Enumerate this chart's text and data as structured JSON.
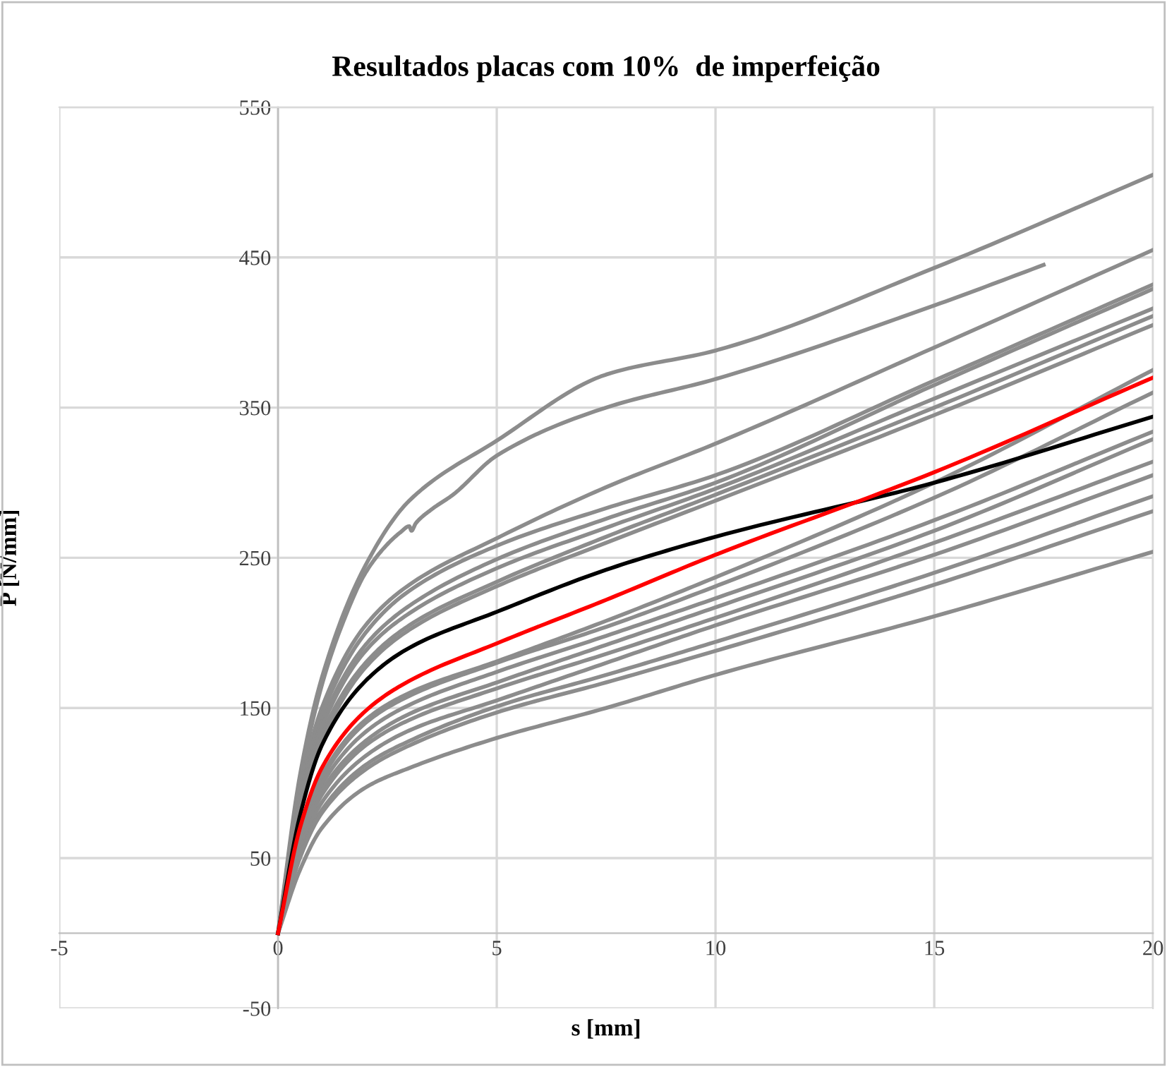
{
  "chart_data": {
    "type": "line",
    "title": "Resultados placas com 10%  de imperfeição",
    "xlabel": "s [mm]",
    "ylabel": "P [N/mm]",
    "x": [
      0,
      0.5,
      1,
      2,
      3,
      5,
      7.5,
      10,
      15,
      20
    ],
    "xlim": [
      -5,
      20
    ],
    "xticks": [
      -5,
      0,
      5,
      10,
      15,
      20
    ],
    "ylim": [
      -50,
      550
    ],
    "yticks": [
      -50,
      50,
      150,
      250,
      350,
      450,
      550
    ],
    "grid": true,
    "marker": "none",
    "line_style": "solid",
    "series": [
      {
        "color": "#8c8c8c",
        "values": [
          0,
          105,
          170,
          245,
          288,
          328,
          372,
          388,
          443,
          505
        ]
      },
      {
        "color": "#8c8c8c",
        "x": [
          0,
          0.5,
          1,
          1.5,
          2,
          2.5,
          2.8,
          3,
          3.05,
          3.15,
          3.5,
          4,
          5,
          7.5,
          10,
          15,
          17.5
        ],
        "values": [
          0,
          100,
          165,
          208,
          240,
          259,
          267,
          271,
          268,
          273,
          282,
          292,
          318,
          350,
          369,
          418,
          445
        ]
      },
      {
        "color": "#8c8c8c",
        "values": [
          0,
          95,
          150,
          205,
          232,
          263,
          297,
          326,
          390,
          455
        ]
      },
      {
        "color": "#8c8c8c",
        "values": [
          0,
          90,
          145,
          200,
          228,
          258,
          283,
          305,
          368,
          432
        ]
      },
      {
        "color": "#8c8c8c",
        "values": [
          0,
          88,
          140,
          192,
          218,
          249,
          276,
          300,
          365,
          429
        ]
      },
      {
        "color": "#8c8c8c",
        "values": [
          0,
          85,
          137,
          188,
          213,
          243,
          270,
          296,
          356,
          416
        ]
      },
      {
        "color": "#8c8c8c",
        "values": [
          0,
          82,
          132,
          180,
          205,
          234,
          264,
          292,
          350,
          411
        ]
      },
      {
        "color": "#8c8c8c",
        "values": [
          0,
          80,
          128,
          177,
          202,
          231,
          260,
          288,
          345,
          405
        ]
      },
      {
        "color": "#8c8c8c",
        "values": [
          0,
          66,
          105,
          142,
          160,
          181,
          208,
          237,
          300,
          375
        ]
      },
      {
        "color": "#8c8c8c",
        "values": [
          0,
          65,
          103,
          140,
          158,
          180,
          204,
          231,
          290,
          360
        ]
      },
      {
        "color": "#8c8c8c",
        "values": [
          0,
          62,
          99,
          134,
          152,
          174,
          198,
          223,
          275,
          334
        ]
      },
      {
        "color": "#8c8c8c",
        "values": [
          0,
          60,
          95,
          128,
          146,
          167,
          192,
          217,
          268,
          329
        ]
      },
      {
        "color": "#8c8c8c",
        "values": [
          0,
          58,
          92,
          125,
          142,
          163,
          186,
          210,
          260,
          314
        ]
      },
      {
        "color": "#8c8c8c",
        "values": [
          0,
          55,
          87,
          118,
          135,
          155,
          180,
          205,
          252,
          305
        ]
      },
      {
        "color": "#8c8c8c",
        "values": [
          0,
          52,
          82,
          112,
          128,
          151,
          172,
          194,
          240,
          291
        ]
      },
      {
        "color": "#8c8c8c",
        "values": [
          0,
          50,
          80,
          109,
          125,
          147,
          167,
          188,
          232,
          281
        ]
      },
      {
        "color": "#8c8c8c",
        "values": [
          0,
          42,
          70,
          97,
          110,
          130,
          150,
          172,
          211,
          254
        ]
      },
      {
        "color": "#000000",
        "values": [
          0,
          78,
          125,
          168,
          190,
          214,
          242,
          264,
          300,
          344
        ]
      },
      {
        "color": "#ff0000",
        "values": [
          0,
          70,
          110,
          148,
          168,
          193,
          222,
          252,
          307,
          370
        ]
      }
    ]
  }
}
